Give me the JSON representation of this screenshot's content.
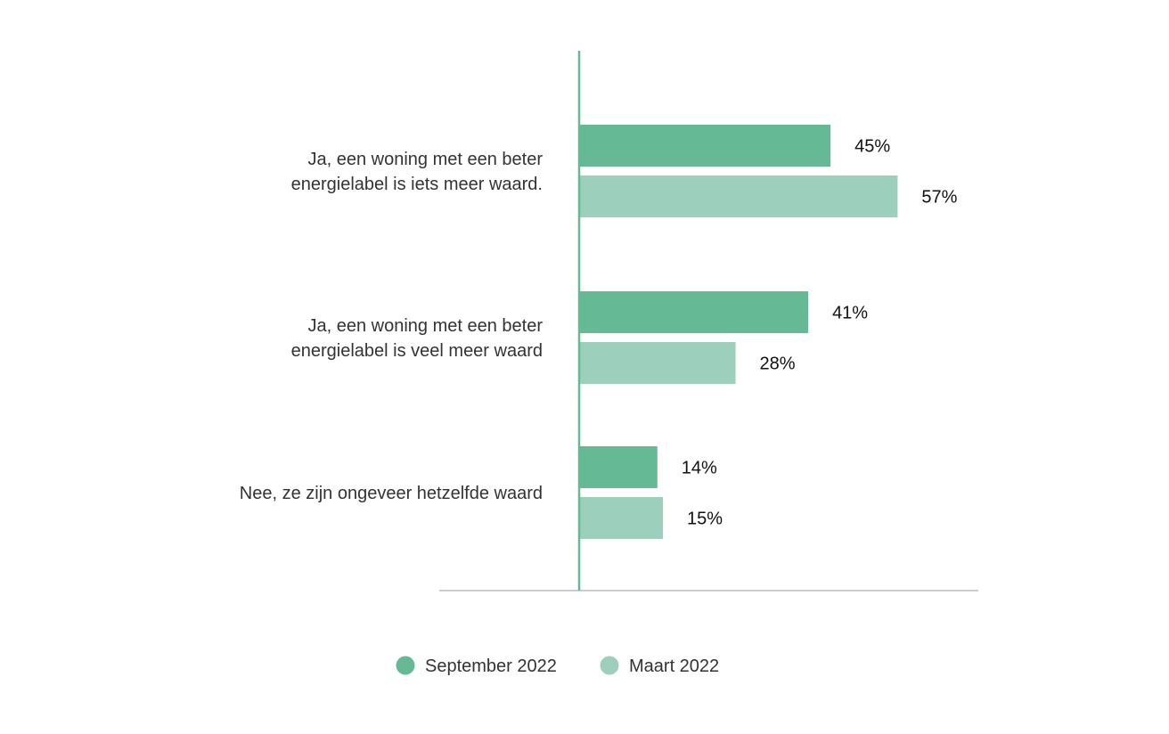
{
  "chart_data": {
    "type": "bar",
    "orientation": "horizontal",
    "categories": [
      [
        "Ja, een woning met een beter",
        "energielabel is iets meer waard."
      ],
      [
        "Ja, een woning met een beter",
        "energielabel is veel meer waard"
      ],
      [
        "Nee, ze zijn ongeveer hetzelfde waard"
      ]
    ],
    "series": [
      {
        "name": "September 2022",
        "color": "#66b995",
        "values": [
          45,
          41,
          14
        ],
        "labels": [
          "45%",
          "41%",
          "14%"
        ]
      },
      {
        "name": "Maart 2022",
        "color": "#9cd0bd",
        "values": [
          57,
          28,
          15
        ],
        "labels": [
          "57%",
          "28%",
          "15%"
        ]
      }
    ],
    "xlim": [
      0,
      60
    ],
    "unit": "%",
    "grid": false,
    "legend_position": "bottom-center",
    "axis_color": "#66b995",
    "baseline_color": "#cccccc"
  }
}
